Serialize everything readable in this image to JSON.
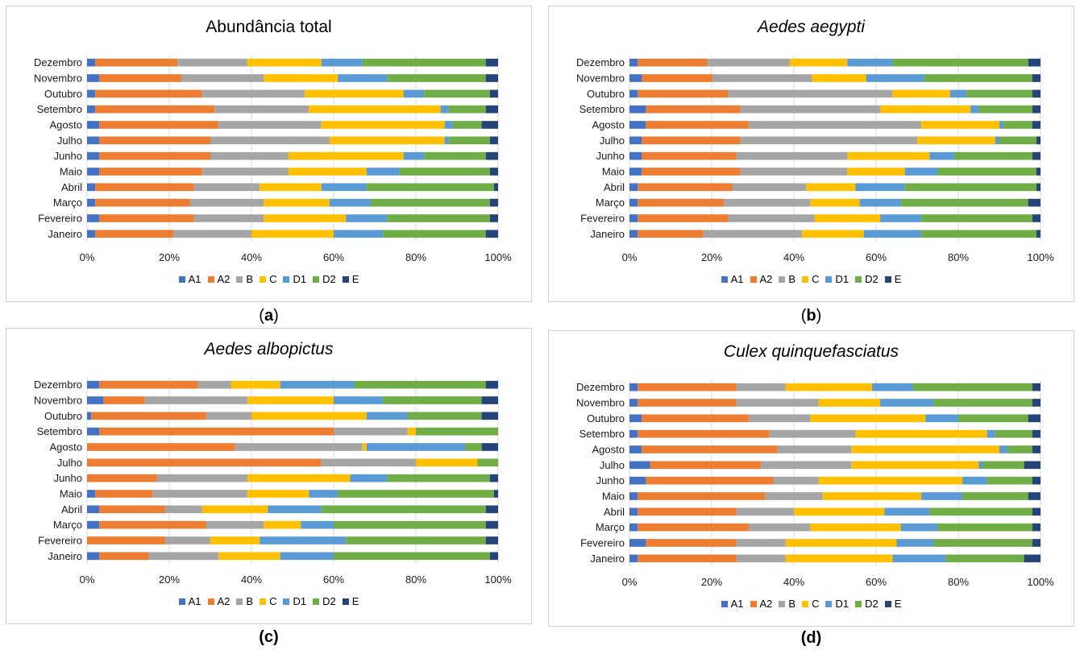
{
  "captions": [
    {
      "open": "(",
      "letter": "a",
      "close": ")"
    },
    {
      "open": "(",
      "letter": "b",
      "close": ")"
    },
    {
      "open": "",
      "letter": "(c)",
      "close": ""
    },
    {
      "open": "",
      "letter": "(d)",
      "close": ""
    }
  ],
  "colors": {
    "A1": "#4472C4",
    "A2": "#ED7D31",
    "B": "#A5A5A5",
    "C": "#FFC000",
    "D1": "#5B9BD5",
    "D2": "#70AD47",
    "E": "#264478",
    "grid": "#d9d9d9",
    "border": "#d0d0d0"
  },
  "chart_data": [
    {
      "type": "bar",
      "stacked": "percent",
      "orientation": "horizontal",
      "title": "Abundância total",
      "title_style": "normal",
      "categories": [
        "Dezembro",
        "Novembro",
        "Outubro",
        "Setembro",
        "Agosto",
        "Julho",
        "Junho",
        "Maio",
        "Abril",
        "Março",
        "Fevereiro",
        "Janeiro"
      ],
      "xticks": [
        "0%",
        "20%",
        "40%",
        "60%",
        "80%",
        "100%"
      ],
      "xlim": [
        0,
        100
      ],
      "grid": true,
      "legend": "bottom",
      "series": [
        {
          "name": "A1",
          "values": [
            2,
            3,
            2,
            2,
            3,
            3,
            3,
            3,
            2,
            2,
            3,
            2
          ]
        },
        {
          "name": "A2",
          "values": [
            20,
            20,
            26,
            29,
            29,
            27,
            27,
            25,
            24,
            23,
            23,
            19
          ]
        },
        {
          "name": "B",
          "values": [
            17,
            20,
            25,
            23,
            25,
            29,
            19,
            21,
            16,
            18,
            17,
            19
          ]
        },
        {
          "name": "C",
          "values": [
            18,
            18,
            24,
            32,
            30,
            28,
            28,
            19,
            15,
            16,
            20,
            20
          ]
        },
        {
          "name": "D1",
          "values": [
            10,
            12,
            5,
            2,
            2,
            1,
            5,
            8,
            11,
            10,
            10,
            12
          ]
        },
        {
          "name": "D2",
          "values": [
            30,
            24,
            16,
            9,
            7,
            10,
            15,
            22,
            31,
            29,
            25,
            25
          ]
        },
        {
          "name": "E",
          "values": [
            3,
            3,
            2,
            3,
            4,
            2,
            3,
            2,
            1,
            2,
            2,
            3
          ]
        }
      ]
    },
    {
      "type": "bar",
      "stacked": "percent",
      "orientation": "horizontal",
      "title": "Aedes aegypti",
      "title_style": "italic",
      "categories": [
        "Dezembro",
        "Novembro",
        "Outubro",
        "Setembro",
        "Agosto",
        "Julho",
        "Junho",
        "Maio",
        "Abril",
        "Março",
        "Fevereiro",
        "Janeiro"
      ],
      "xticks": [
        "0%",
        "20%",
        "40%",
        "60%",
        "80%",
        "100%"
      ],
      "xlim": [
        0,
        100
      ],
      "grid": true,
      "legend": "bottom",
      "series": [
        {
          "name": "A1",
          "values": [
            2,
            3,
            2,
            4,
            4,
            3,
            3,
            3,
            2,
            2,
            2,
            2
          ]
        },
        {
          "name": "A2",
          "values": [
            17,
            17,
            22,
            23,
            25,
            24,
            23,
            24,
            23,
            21,
            22,
            16
          ]
        },
        {
          "name": "B",
          "values": [
            20,
            24,
            40,
            34,
            42,
            43,
            27,
            26,
            18,
            21,
            21,
            24
          ]
        },
        {
          "name": "C",
          "values": [
            14,
            13,
            14,
            22,
            19,
            19,
            20,
            14,
            12,
            12,
            16,
            15
          ]
        },
        {
          "name": "D1",
          "values": [
            11,
            14,
            4,
            2,
            1,
            1,
            6,
            8,
            12,
            10,
            10,
            14
          ]
        },
        {
          "name": "D2",
          "values": [
            33,
            26,
            16,
            13,
            7,
            9,
            19,
            24,
            32,
            31,
            27,
            28
          ]
        },
        {
          "name": "E",
          "values": [
            3,
            2,
            2,
            2,
            2,
            1,
            2,
            1,
            1,
            3,
            2,
            1
          ]
        }
      ]
    },
    {
      "type": "bar",
      "stacked": "percent",
      "orientation": "horizontal",
      "title": "Aedes albopictus",
      "title_style": "italic",
      "categories": [
        "Dezembro",
        "Novembro",
        "Outubro",
        "Setembro",
        "Agosto",
        "Julho",
        "Junho",
        "Maio",
        "Abril",
        "Março",
        "Fevereiro",
        "Janeiro"
      ],
      "xticks": [
        "0%",
        "20%",
        "40%",
        "60%",
        "80%",
        "100%"
      ],
      "xlim": [
        0,
        100
      ],
      "grid": true,
      "legend": "bottom",
      "series": [
        {
          "name": "A1",
          "values": [
            3,
            4,
            1,
            3,
            0,
            0,
            0,
            2,
            3,
            3,
            0,
            3
          ]
        },
        {
          "name": "A2",
          "values": [
            24,
            10,
            28,
            57,
            36,
            57,
            17,
            14,
            16,
            26,
            19,
            12
          ]
        },
        {
          "name": "B",
          "values": [
            8,
            25,
            11,
            18,
            31,
            23,
            22,
            23,
            9,
            14,
            11,
            17
          ]
        },
        {
          "name": "C",
          "values": [
            12,
            21,
            28,
            2,
            1,
            15,
            25,
            15,
            16,
            9,
            12,
            15
          ]
        },
        {
          "name": "D1",
          "values": [
            18,
            12,
            10,
            0,
            24,
            0,
            9,
            7,
            13,
            8,
            21,
            13
          ]
        },
        {
          "name": "D2",
          "values": [
            32,
            24,
            18,
            20,
            4,
            5,
            25,
            38,
            40,
            37,
            34,
            38
          ]
        },
        {
          "name": "E",
          "values": [
            3,
            4,
            4,
            0,
            4,
            0,
            2,
            1,
            3,
            3,
            3,
            2
          ]
        }
      ]
    },
    {
      "type": "bar",
      "stacked": "percent",
      "orientation": "horizontal",
      "title": "Culex quinquefasciatus",
      "title_style": "italic",
      "categories": [
        "Dezembro",
        "Novembro",
        "Outubro",
        "Setembro",
        "Agosto",
        "Julho",
        "Junho",
        "Maio",
        "Abril",
        "Março",
        "Fevereiro",
        "Janeiro"
      ],
      "xticks": [
        "0%",
        "20%",
        "40%",
        "60%",
        "80%",
        "100%"
      ],
      "xlim": [
        0,
        100
      ],
      "grid": true,
      "legend": "bottom",
      "series": [
        {
          "name": "A1",
          "values": [
            2,
            2,
            3,
            2,
            3,
            5,
            4,
            2,
            2,
            2,
            4,
            2
          ]
        },
        {
          "name": "A2",
          "values": [
            24,
            24,
            26,
            32,
            33,
            27,
            31,
            31,
            24,
            27,
            22,
            24
          ]
        },
        {
          "name": "B",
          "values": [
            12,
            20,
            15,
            21,
            18,
            22,
            11,
            14,
            14,
            15,
            12,
            12
          ]
        },
        {
          "name": "C",
          "values": [
            21,
            15,
            28,
            32,
            36,
            31,
            35,
            24,
            22,
            22,
            27,
            26
          ]
        },
        {
          "name": "D1",
          "values": [
            10,
            13,
            8,
            2,
            2,
            1,
            6,
            10,
            11,
            9,
            9,
            13
          ]
        },
        {
          "name": "D2",
          "values": [
            29,
            24,
            17,
            9,
            6,
            10,
            11,
            16,
            25,
            23,
            24,
            19
          ]
        },
        {
          "name": "E",
          "values": [
            2,
            2,
            3,
            2,
            2,
            4,
            2,
            3,
            2,
            2,
            2,
            4
          ]
        }
      ]
    }
  ]
}
